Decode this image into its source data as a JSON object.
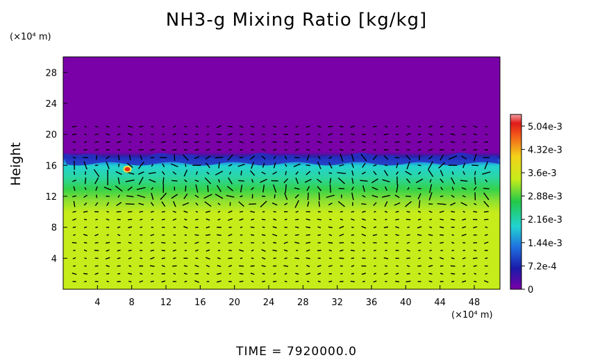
{
  "chart_data": {
    "type": "heatmap",
    "title": "NH3-g Mixing Ratio [kg/kg]",
    "ylabel": "Height",
    "xlabel": "",
    "y_unit": "(×10⁴ m)",
    "x_unit": "(×10⁴ m)",
    "x_ticks": [
      4,
      8,
      12,
      16,
      20,
      24,
      28,
      32,
      36,
      40,
      44,
      48
    ],
    "y_ticks": [
      4,
      8,
      12,
      16,
      20,
      24,
      28
    ],
    "xlim": [
      0,
      51
    ],
    "ylim": [
      0,
      30
    ],
    "colorbar": {
      "min": 0,
      "max": 0.0054,
      "tick_labels": [
        "5.04e-3",
        "4.32e-3",
        "3.6e-3",
        "2.88e-3",
        "2.16e-3",
        "1.44e-3",
        "7.2e-4",
        "0"
      ],
      "tick_values": [
        0.00504,
        0.00432,
        0.0036,
        0.00288,
        0.00216,
        0.00144,
        0.00072,
        0
      ]
    },
    "layers": [
      {
        "from_height": 0,
        "to_height": 10,
        "value": 0.0034
      },
      {
        "from_height": 10,
        "to_height": 12,
        "value": 0.0031
      },
      {
        "from_height": 12,
        "to_height": 14,
        "value": 0.0027
      },
      {
        "from_height": 14,
        "to_height": 16.5,
        "value": 0.002
      },
      {
        "from_height": 16.5,
        "to_height": 17,
        "value": 0.0006
      },
      {
        "from_height": 17,
        "to_height": 30,
        "value": 0.0
      }
    ],
    "hotspot": {
      "x": 7.5,
      "y": 15.5,
      "value": 0.0054
    },
    "footer_label": "TIME  =  7920000.0",
    "colors": {
      "background_top": "#7a00a8",
      "lower_fill": "#c6ec1a",
      "mid_green": "#34d24a",
      "cyan": "#22d3d0",
      "blue": "#1f2ab8",
      "navy": "#3b1aa0"
    }
  }
}
